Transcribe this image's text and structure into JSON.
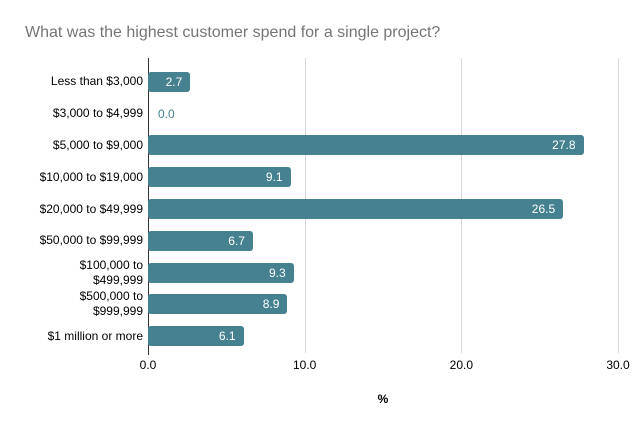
{
  "title": "What was the highest customer spend for a single project?",
  "chart_data": {
    "type": "bar",
    "orientation": "horizontal",
    "title": "What was the highest customer spend for a single project?",
    "categories": [
      "Less than $3,000",
      "$3,000 to $4,999",
      "$5,000 to $9,000",
      "$10,000 to $19,000",
      "$20,000 to $49,999",
      "$50,000 to $99,999",
      "$100,000 to $499,999",
      "$500,000 to $999,999",
      "$1 million or more"
    ],
    "values": [
      2.7,
      0.0,
      27.8,
      9.1,
      26.5,
      6.7,
      9.3,
      8.9,
      6.1
    ],
    "value_labels": [
      "2.7",
      "0.0",
      "27.8",
      "9.1",
      "26.5",
      "6.7",
      "9.3",
      "8.9",
      "6.1"
    ],
    "xlabel": "%",
    "xlim": [
      0,
      30
    ],
    "xticks": [
      0,
      10,
      20,
      30
    ],
    "xtick_labels": [
      "0.0",
      "10.0",
      "20.0",
      "30.0"
    ],
    "grid": true,
    "legend": "none",
    "colors": {
      "bar": "#45818e",
      "title": "#757575",
      "gridline": "#d9d9d9",
      "axis_line": "#333333",
      "value_label_inside": "#ffffff",
      "value_label_outside": "#45818e",
      "tick_label": "#000000"
    }
  }
}
